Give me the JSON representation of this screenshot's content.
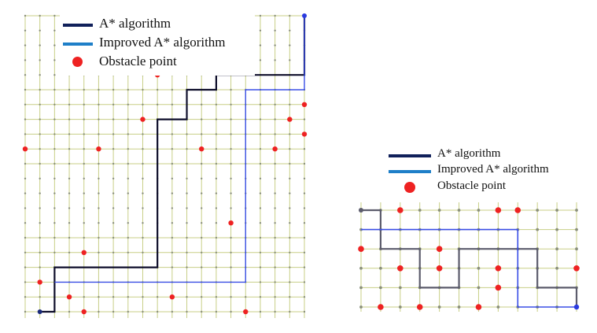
{
  "colors": {
    "grid": "#c8cf86",
    "grid_node": "#8a8f7c",
    "obstacle": "#ee2222",
    "astar_left": "#0e0e2a",
    "improved_left": "#3a4ee6",
    "astar_right": "#5c5c6c",
    "improved_right": "#3a4ee6",
    "legend_astar": "#10205a",
    "legend_improved": "#1e7fc8"
  },
  "legends": [
    {
      "astar_label": "A* algorithm",
      "improved_label": "Improved A*  algorithm",
      "obstacle_label": "Obstacle point"
    },
    {
      "astar_label": "A* algorithm",
      "improved_label": "Improved A*  algorithm",
      "obstacle_label": "Obstacle point"
    }
  ],
  "diagrams": [
    {
      "name": "map-1",
      "cols": 20,
      "rows": 21,
      "grid_missing_rows": [
        1,
        2,
        3,
        4,
        11,
        12,
        13,
        14
      ],
      "obstacles": [
        [
          9,
          4
        ],
        [
          8,
          7
        ],
        [
          19,
          6
        ],
        [
          18,
          7
        ],
        [
          19,
          8
        ],
        [
          0,
          9
        ],
        [
          5,
          9
        ],
        [
          12,
          9
        ],
        [
          17,
          9
        ],
        [
          14,
          14
        ],
        [
          4,
          16
        ],
        [
          1,
          18
        ],
        [
          3,
          19
        ],
        [
          10,
          19
        ],
        [
          4,
          20
        ],
        [
          15,
          20
        ]
      ],
      "astar_path": [
        [
          1,
          20
        ],
        [
          2,
          20
        ],
        [
          2,
          17
        ],
        [
          9,
          17
        ],
        [
          9,
          7
        ],
        [
          11,
          7
        ],
        [
          11,
          5
        ],
        [
          13,
          5
        ],
        [
          13,
          4
        ],
        [
          19,
          4
        ],
        [
          19,
          0
        ]
      ],
      "improved_path": [
        [
          2,
          18
        ],
        [
          15,
          18
        ],
        [
          15,
          5
        ],
        [
          19,
          5
        ],
        [
          19,
          0
        ]
      ]
    },
    {
      "name": "map-2",
      "cols": 12,
      "rows": 6,
      "grid_missing_rows": [],
      "obstacles": [
        [
          2,
          0
        ],
        [
          7,
          0
        ],
        [
          8,
          0
        ],
        [
          0,
          2
        ],
        [
          4,
          2
        ],
        [
          2,
          3
        ],
        [
          4,
          3
        ],
        [
          7,
          3
        ],
        [
          11,
          3
        ],
        [
          7,
          4
        ],
        [
          1,
          5
        ],
        [
          3,
          5
        ],
        [
          6,
          5
        ]
      ],
      "astar_path": [
        [
          0,
          0
        ],
        [
          1,
          0
        ],
        [
          1,
          2
        ],
        [
          3,
          2
        ],
        [
          3,
          4
        ],
        [
          5,
          4
        ],
        [
          5,
          2
        ],
        [
          9,
          2
        ],
        [
          9,
          4
        ],
        [
          11,
          4
        ],
        [
          11,
          5
        ]
      ],
      "improved_path": [
        [
          0,
          1
        ],
        [
          8,
          1
        ],
        [
          8,
          5
        ],
        [
          11,
          5
        ]
      ]
    }
  ]
}
